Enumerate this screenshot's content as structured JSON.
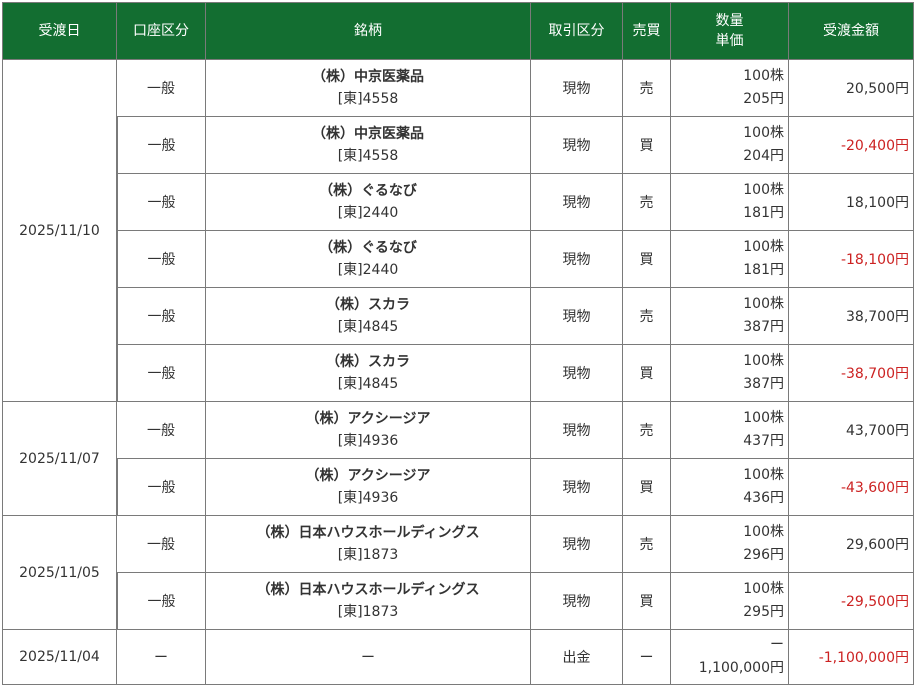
{
  "header": {
    "date": "受渡日",
    "account": "口座区分",
    "stock": "銘柄",
    "trade_type": "取引区分",
    "side": "売買",
    "qty": "数量",
    "price": "単価",
    "amount": "受渡金額"
  },
  "groups": [
    {
      "date": "2025/11/10",
      "rows": [
        {
          "account": "一般",
          "name": "（株）中京医薬品",
          "code": "[東]4558",
          "type": "現物",
          "side": "売",
          "qty": "100株",
          "price": "205円",
          "amount": "20,500円",
          "negative": false
        },
        {
          "account": "一般",
          "name": "（株）中京医薬品",
          "code": "[東]4558",
          "type": "現物",
          "side": "買",
          "qty": "100株",
          "price": "204円",
          "amount": "-20,400円",
          "negative": true
        },
        {
          "account": "一般",
          "name": "（株）ぐるなび",
          "code": "[東]2440",
          "type": "現物",
          "side": "売",
          "qty": "100株",
          "price": "181円",
          "amount": "18,100円",
          "negative": false
        },
        {
          "account": "一般",
          "name": "（株）ぐるなび",
          "code": "[東]2440",
          "type": "現物",
          "side": "買",
          "qty": "100株",
          "price": "181円",
          "amount": "-18,100円",
          "negative": true
        },
        {
          "account": "一般",
          "name": "（株）スカラ",
          "code": "[東]4845",
          "type": "現物",
          "side": "売",
          "qty": "100株",
          "price": "387円",
          "amount": "38,700円",
          "negative": false
        },
        {
          "account": "一般",
          "name": "（株）スカラ",
          "code": "[東]4845",
          "type": "現物",
          "side": "買",
          "qty": "100株",
          "price": "387円",
          "amount": "-38,700円",
          "negative": true
        }
      ]
    },
    {
      "date": "2025/11/07",
      "rows": [
        {
          "account": "一般",
          "name": "（株）アクシージア",
          "code": "[東]4936",
          "type": "現物",
          "side": "売",
          "qty": "100株",
          "price": "437円",
          "amount": "43,700円",
          "negative": false
        },
        {
          "account": "一般",
          "name": "（株）アクシージア",
          "code": "[東]4936",
          "type": "現物",
          "side": "買",
          "qty": "100株",
          "price": "436円",
          "amount": "-43,600円",
          "negative": true
        }
      ]
    },
    {
      "date": "2025/11/05",
      "rows": [
        {
          "account": "一般",
          "name": "（株）日本ハウスホールディングス",
          "code": "[東]1873",
          "type": "現物",
          "side": "売",
          "qty": "100株",
          "price": "296円",
          "amount": "29,600円",
          "negative": false
        },
        {
          "account": "一般",
          "name": "（株）日本ハウスホールディングス",
          "code": "[東]1873",
          "type": "現物",
          "side": "買",
          "qty": "100株",
          "price": "295円",
          "amount": "-29,500円",
          "negative": true
        }
      ]
    },
    {
      "date": "2025/11/04",
      "rows": [
        {
          "account": "ー",
          "name": "ー",
          "code": "",
          "type": "出金",
          "side": "ー",
          "qty": "ー",
          "price": "1,100,000円",
          "amount": "-1,100,000円",
          "negative": true
        }
      ]
    }
  ]
}
